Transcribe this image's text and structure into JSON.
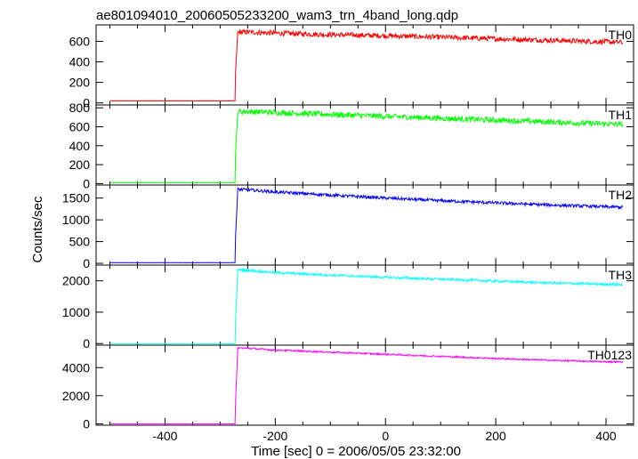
{
  "chart_data": {
    "type": "line",
    "title": "ae801094010_20060505233200_wam3_trn_4band_long.qdp",
    "xlabel": "Time [sec] 0 = 2006/05/05 23:32:00",
    "ylabel": "Counts/sec",
    "xlim": [
      -525,
      450
    ],
    "xticks": [
      -400,
      -200,
      0,
      200,
      400
    ],
    "panels": [
      {
        "name": "TH0",
        "color": "#ff0000",
        "ylim": [
          -20,
          760
        ],
        "yticks": [
          0,
          200,
          400,
          600
        ],
        "onset": -272,
        "x": [
          -500,
          -273,
          -272,
          -268,
          -250,
          -200,
          -100,
          0,
          100,
          200,
          300,
          400,
          430
        ],
        "values": [
          20,
          20,
          300,
          690,
          690,
          680,
          665,
          655,
          640,
          625,
          610,
          595,
          590
        ],
        "noise": 25
      },
      {
        "name": "TH1",
        "color": "#00ff00",
        "ylim": [
          -15,
          830
        ],
        "yticks": [
          0,
          200,
          400,
          600,
          800
        ],
        "onset": -272,
        "x": [
          -500,
          -273,
          -272,
          -268,
          -250,
          -200,
          -100,
          0,
          100,
          200,
          300,
          400,
          430
        ],
        "values": [
          10,
          10,
          300,
          760,
          760,
          750,
          730,
          710,
          690,
          670,
          650,
          630,
          625
        ],
        "noise": 30
      },
      {
        "name": "TH2",
        "color": "#0000ff",
        "ylim": [
          -40,
          1800
        ],
        "yticks": [
          0,
          500,
          1000,
          1500
        ],
        "onset": -272,
        "x": [
          -500,
          -273,
          -272,
          -268,
          -250,
          -200,
          -100,
          0,
          100,
          200,
          300,
          400,
          430
        ],
        "values": [
          15,
          15,
          600,
          1700,
          1690,
          1640,
          1570,
          1500,
          1440,
          1390,
          1340,
          1300,
          1290
        ],
        "noise": 35
      },
      {
        "name": "TH3",
        "color": "#00ffff",
        "ylim": [
          -50,
          2500
        ],
        "yticks": [
          0,
          1000,
          2000
        ],
        "onset": -272,
        "x": [
          -500,
          -273,
          -272,
          -268,
          -250,
          -200,
          -100,
          0,
          100,
          200,
          300,
          400,
          430
        ],
        "values": [
          0,
          0,
          700,
          2350,
          2330,
          2260,
          2180,
          2110,
          2050,
          1990,
          1930,
          1890,
          1880
        ],
        "noise": 40
      },
      {
        "name": "TH0123",
        "color": "#ff00ff",
        "ylim": [
          -100,
          5600
        ],
        "yticks": [
          0,
          2000,
          4000
        ],
        "onset": -272,
        "x": [
          -500,
          -273,
          -272,
          -268,
          -250,
          -200,
          -100,
          0,
          100,
          200,
          300,
          400,
          430
        ],
        "values": [
          0,
          0,
          1500,
          5400,
          5380,
          5250,
          5100,
          4950,
          4800,
          4650,
          4520,
          4420,
          4400
        ],
        "noise": 60
      }
    ]
  }
}
